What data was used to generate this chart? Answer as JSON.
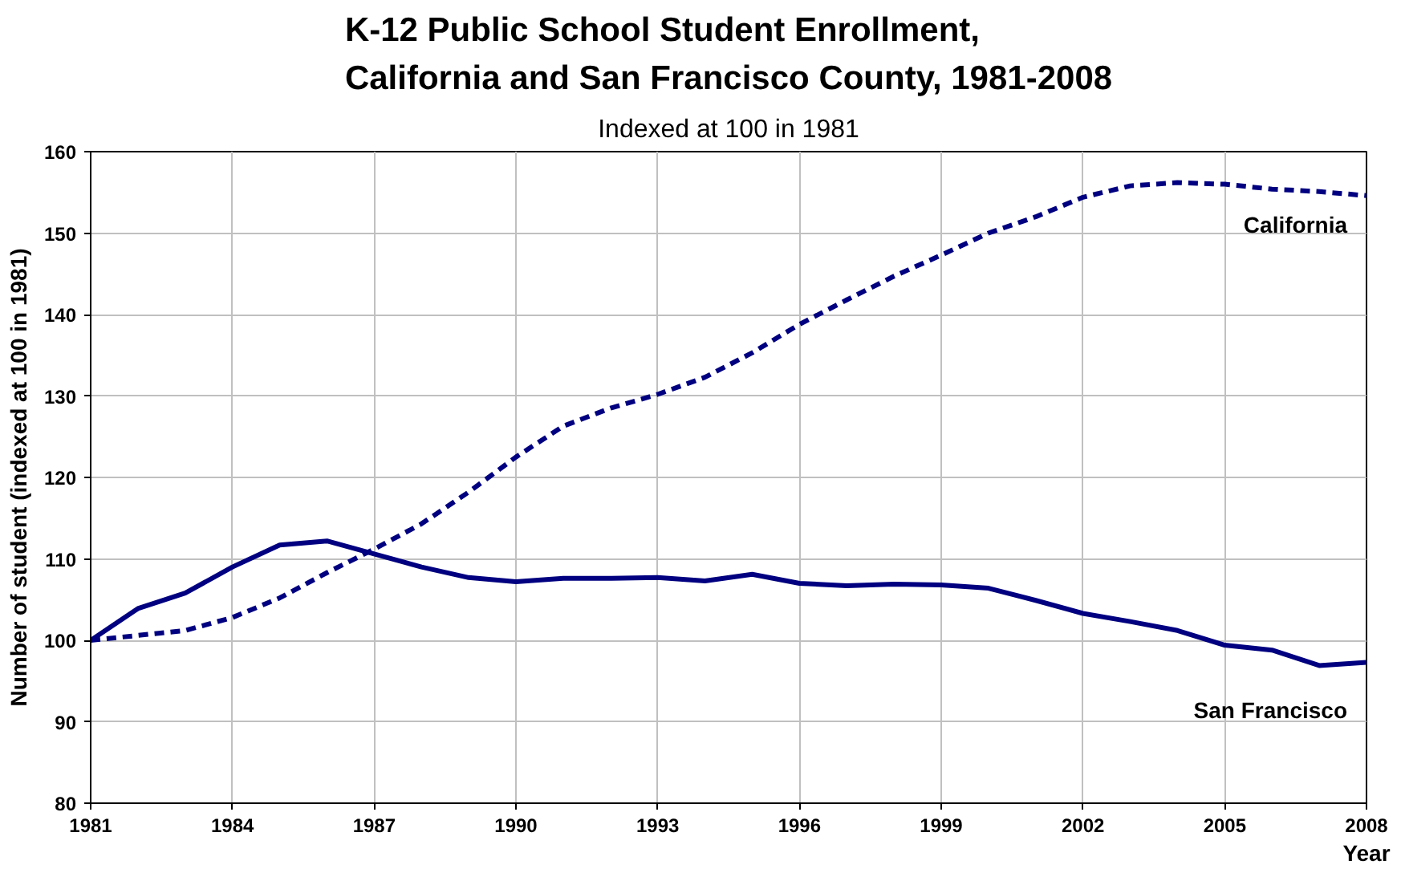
{
  "chart_data": {
    "type": "line",
    "title": "K-12 Public School Student Enrollment,\nCalifornia and San Francisco County, 1981-2008",
    "subtitle": "Indexed at 100 in 1981",
    "xlabel": "Year",
    "ylabel": "Number of student (indexed at 100 in 1981)",
    "x": [
      1981,
      1982,
      1983,
      1984,
      1985,
      1986,
      1987,
      1988,
      1989,
      1990,
      1991,
      1992,
      1993,
      1994,
      1995,
      1996,
      1997,
      1998,
      1999,
      2000,
      2001,
      2002,
      2003,
      2004,
      2005,
      2006,
      2007,
      2008
    ],
    "series": [
      {
        "name": "California",
        "color": "#000080",
        "line_style": "dashed",
        "values": [
          100,
          100.6,
          101.2,
          102.8,
          105.2,
          108.3,
          111.2,
          114.3,
          118.2,
          122.5,
          126.3,
          128.5,
          130.2,
          132.3,
          135.3,
          138.8,
          141.8,
          144.7,
          147.3,
          150,
          152,
          154.4,
          155.8,
          156.2,
          156,
          155.4,
          155.1,
          154.6
        ]
      },
      {
        "name": "San Francisco",
        "color": "#000080",
        "line_style": "solid",
        "values": [
          100,
          103.9,
          105.8,
          109,
          111.7,
          112.2,
          110.6,
          109,
          107.7,
          107.2,
          107.6,
          107.6,
          107.7,
          107.3,
          108.1,
          107,
          106.7,
          106.9,
          106.8,
          106.4,
          104.9,
          103.3,
          102.3,
          101.2,
          99.4,
          98.8,
          96.9,
          97.3
        ]
      }
    ],
    "xlim": [
      1981,
      2008
    ],
    "xticks": [
      1981,
      1984,
      1987,
      1990,
      1993,
      1996,
      1999,
      2002,
      2005,
      2008
    ],
    "ylim": [
      80,
      160
    ],
    "yticks": [
      80,
      90,
      100,
      110,
      120,
      130,
      140,
      150,
      160
    ],
    "grid": true,
    "marker": "none"
  }
}
